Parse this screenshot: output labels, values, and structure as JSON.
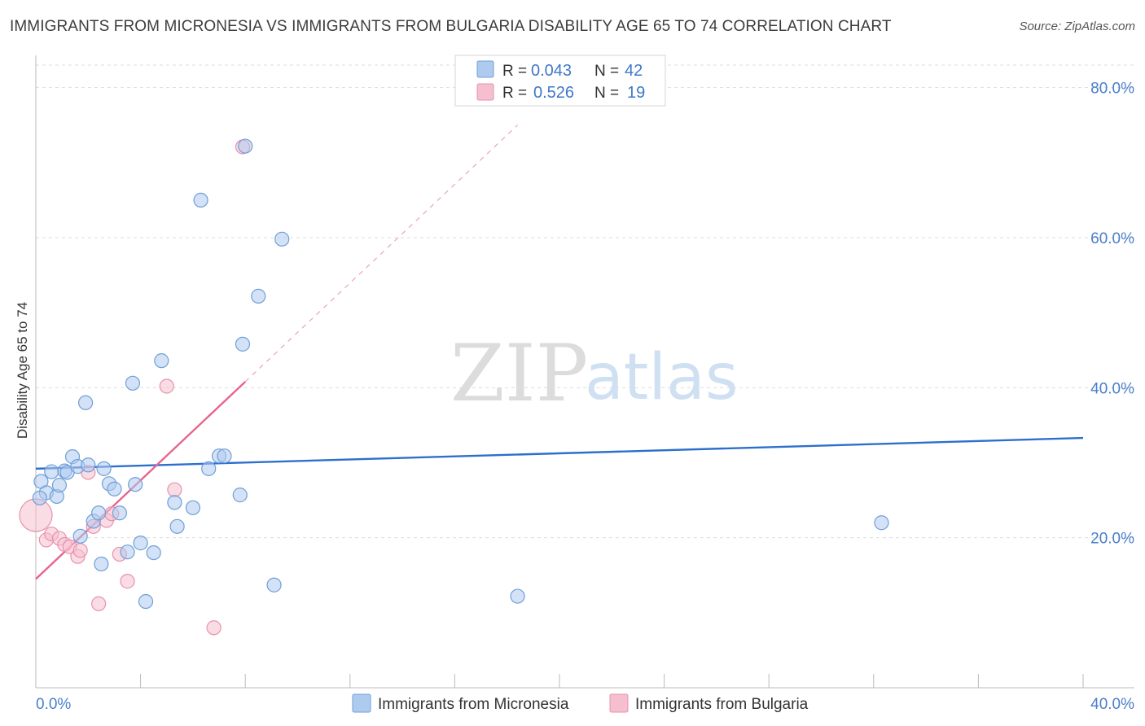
{
  "title": "IMMIGRANTS FROM MICRONESIA VS IMMIGRANTS FROM BULGARIA DISABILITY AGE 65 TO 74 CORRELATION CHART",
  "source": "Source: ZipAtlas.com",
  "watermark": {
    "part1": "ZIP",
    "part2": "atlas"
  },
  "colors": {
    "micronesia_fill": "#aecbef",
    "micronesia_stroke": "#6f9fd8",
    "micronesia_line": "#2d6fcc",
    "bulgaria_fill": "#f6bfd0",
    "bulgaria_stroke": "#e891ad",
    "bulgaria_line": "#e8648c",
    "tick_text": "#4a7fcb",
    "grid": "#dddddd"
  },
  "stats_legend": {
    "rows": [
      {
        "r_label": "R = ",
        "r_value": "0.043",
        "n_label": "N = ",
        "n_value": "42"
      },
      {
        "r_label": "R = ",
        "r_value": "0.526",
        "n_label": "N = ",
        "n_value": "19"
      }
    ]
  },
  "bottom_legend": [
    "Immigrants from Micronesia",
    "Immigrants from Bulgaria"
  ],
  "chart_data": {
    "type": "scatter",
    "title": "IMMIGRANTS FROM MICRONESIA VS IMMIGRANTS FROM BULGARIA DISABILITY AGE 65 TO 74 CORRELATION CHART",
    "xlabel": "",
    "ylabel": "Disability Age 65 to 74",
    "xlim": [
      0,
      40
    ],
    "ylim": [
      0,
      83
    ],
    "x_ticks": [
      0,
      4,
      8,
      12,
      16,
      20,
      24,
      28,
      32,
      36,
      40
    ],
    "x_tick_labels": [
      {
        "value": 0,
        "label": "0.0%"
      },
      {
        "value": 40,
        "label": "40.0%"
      }
    ],
    "y_ticks": [
      {
        "value": 20,
        "label": "20.0%"
      },
      {
        "value": 40,
        "label": "40.0%"
      },
      {
        "value": 60,
        "label": "60.0%"
      },
      {
        "value": 80,
        "label": "80.0%"
      }
    ],
    "grid": true,
    "series": [
      {
        "name": "Immigrants from Micronesia",
        "R": 0.043,
        "N": 42,
        "trend": {
          "x": [
            0,
            40
          ],
          "y": [
            29.2,
            33.3
          ],
          "style": "solid"
        },
        "points": [
          [
            0.2,
            27.5
          ],
          [
            0.4,
            26.0
          ],
          [
            0.6,
            28.8
          ],
          [
            0.8,
            25.5
          ],
          [
            0.9,
            27.0
          ],
          [
            1.1,
            28.9
          ],
          [
            1.2,
            28.7
          ],
          [
            1.4,
            30.8
          ],
          [
            1.6,
            29.5
          ],
          [
            1.7,
            20.2
          ],
          [
            1.9,
            38.0
          ],
          [
            2.0,
            29.7
          ],
          [
            2.2,
            22.2
          ],
          [
            2.4,
            23.3
          ],
          [
            2.5,
            16.5
          ],
          [
            2.6,
            29.2
          ],
          [
            2.8,
            27.2
          ],
          [
            3.0,
            26.5
          ],
          [
            3.2,
            23.3
          ],
          [
            3.5,
            18.1
          ],
          [
            3.7,
            40.6
          ],
          [
            3.8,
            27.1
          ],
          [
            4.0,
            19.3
          ],
          [
            4.2,
            11.5
          ],
          [
            4.5,
            18.0
          ],
          [
            4.8,
            43.6
          ],
          [
            5.3,
            24.7
          ],
          [
            5.4,
            21.5
          ],
          [
            6.0,
            24.0
          ],
          [
            6.3,
            65.0
          ],
          [
            6.6,
            29.2
          ],
          [
            7.0,
            30.9
          ],
          [
            7.2,
            30.9
          ],
          [
            7.8,
            25.7
          ],
          [
            7.9,
            45.8
          ],
          [
            8.0,
            72.2
          ],
          [
            8.5,
            52.2
          ],
          [
            9.1,
            13.7
          ],
          [
            9.4,
            59.8
          ],
          [
            18.4,
            12.2
          ],
          [
            32.3,
            22.0
          ],
          [
            0.15,
            25.3
          ]
        ]
      },
      {
        "name": "Immigrants from Bulgaria",
        "R": 0.526,
        "N": 19,
        "trend": {
          "x": [
            0,
            8.0
          ],
          "y": [
            14.5,
            40.8
          ],
          "style": "solid",
          "extension": {
            "x": [
              8.0,
              18.4
            ],
            "y": [
              40.8,
              75.0
            ],
            "style": "dashed"
          }
        },
        "points": [
          [
            0.0,
            23.0
          ],
          [
            0.4,
            19.7
          ],
          [
            0.6,
            20.5
          ],
          [
            0.9,
            19.9
          ],
          [
            1.1,
            19.1
          ],
          [
            1.3,
            18.8
          ],
          [
            1.6,
            17.5
          ],
          [
            1.7,
            18.3
          ],
          [
            2.0,
            28.7
          ],
          [
            2.2,
            21.5
          ],
          [
            2.4,
            11.2
          ],
          [
            2.7,
            22.3
          ],
          [
            2.9,
            23.2
          ],
          [
            3.2,
            17.8
          ],
          [
            3.5,
            14.2
          ],
          [
            5.0,
            40.2
          ],
          [
            5.3,
            26.4
          ],
          [
            6.8,
            8.0
          ],
          [
            7.9,
            72.1
          ]
        ]
      }
    ]
  }
}
